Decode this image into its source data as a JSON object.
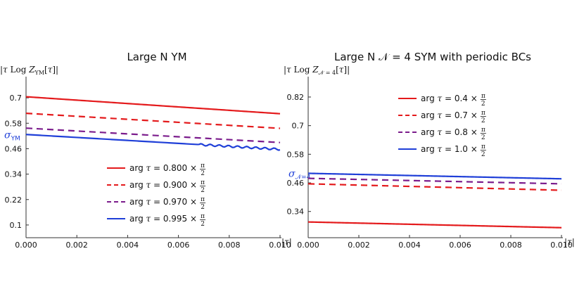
{
  "chart_data": [
    {
      "type": "line",
      "title": "Large N YM",
      "ylabel_parts": [
        "|",
        "τ",
        " Log ",
        "Z",
        "YM",
        "[",
        "τ",
        "]|"
      ],
      "xlabel_parts": [
        "|",
        "τ",
        "|"
      ],
      "xlim": [
        0,
        0.01
      ],
      "ylim": [
        0.04,
        0.76
      ],
      "xticks": [
        0.0,
        0.002,
        0.004,
        0.006,
        0.008,
        0.01
      ],
      "xtick_labels": [
        "0.000",
        "0.002",
        "0.004",
        "0.006",
        "0.008",
        "0.010"
      ],
      "yticks": [
        0.1,
        0.22,
        0.34,
        0.46,
        0.58,
        0.7
      ],
      "ytick_labels": [
        "0.1",
        "0.22",
        "0.34",
        "0.46",
        "0.58",
        "0.7"
      ],
      "sigma": {
        "symbol": "σ",
        "subscript": "YM",
        "value": 0.526,
        "color": "#1f3fd8"
      },
      "legend_position": "center",
      "series": [
        {
          "name": "arg τ = 0.800 × π/2",
          "legend_prefix": "arg ",
          "legend_var": "τ",
          "legend_mid": " = 0.800 × ",
          "frac_num": "π",
          "frac_den": "2",
          "color": "#e41a1c",
          "dash": "solid",
          "x": [
            0,
            0.01
          ],
          "y": [
            0.705,
            0.625
          ]
        },
        {
          "name": "arg τ = 0.900 × π/2",
          "legend_prefix": "arg ",
          "legend_var": "τ",
          "legend_mid": " = 0.900 × ",
          "frac_num": "π",
          "frac_den": "2",
          "color": "#e41a1c",
          "dash": "dashed",
          "x": [
            0,
            0.01
          ],
          "y": [
            0.627,
            0.556
          ]
        },
        {
          "name": "arg τ = 0.970 × π/2",
          "legend_prefix": "arg ",
          "legend_var": "τ",
          "legend_mid": " = 0.970 × ",
          "frac_num": "π",
          "frac_den": "2",
          "color": "#7b1c8c",
          "dash": "dashed",
          "x": [
            0,
            0.01
          ],
          "y": [
            0.557,
            0.489
          ]
        },
        {
          "name": "arg τ = 0.995 × π/2",
          "legend_prefix": "arg ",
          "legend_var": "τ",
          "legend_mid": " = 0.995 × ",
          "frac_num": "π",
          "frac_den": "2",
          "color": "#1f3fd8",
          "dash": "solid",
          "x": [
            0,
            0.01
          ],
          "y": [
            0.527,
            0.457
          ],
          "wiggle_from": 0.0068,
          "wiggle_amp": 0.0045
        }
      ]
    },
    {
      "type": "line",
      "title": "Large N 𝒩 = 4 SYM with periodic BCs",
      "ylabel_parts": [
        "|",
        "τ",
        " Log ",
        "Z",
        "𝒩 = 4",
        "[",
        "τ",
        "]|"
      ],
      "xlabel_parts": [
        "|",
        "τ",
        "|"
      ],
      "xlim": [
        0,
        0.01
      ],
      "ylim": [
        0.23,
        0.87
      ],
      "xticks": [
        0.0,
        0.002,
        0.004,
        0.006,
        0.008,
        0.01
      ],
      "xtick_labels": [
        "0.000",
        "0.002",
        "0.004",
        "0.006",
        "0.008",
        "0.010"
      ],
      "yticks": [
        0.34,
        0.46,
        0.58,
        0.7,
        0.82
      ],
      "ytick_labels": [
        "0.34",
        "0.46",
        "0.58",
        "0.7",
        "0.82"
      ],
      "sigma": {
        "symbol": "σ",
        "subscript": "𝒩=4",
        "value": 0.5,
        "color": "#1f3fd8"
      },
      "legend_position": "top-right",
      "series": [
        {
          "name": "arg τ = 0.4 × π/2",
          "legend_prefix": "arg ",
          "legend_var": "τ",
          "legend_mid": " = 0.4 × ",
          "frac_num": "π",
          "frac_den": "2",
          "color": "#e41a1c",
          "dash": "solid",
          "x": [
            0,
            0.01
          ],
          "y": [
            0.296,
            0.272
          ]
        },
        {
          "name": "arg τ = 0.7 × π/2",
          "legend_prefix": "arg ",
          "legend_var": "τ",
          "legend_mid": " = 0.7 × ",
          "frac_num": "π",
          "frac_den": "2",
          "color": "#e41a1c",
          "dash": "dashed",
          "x": [
            0,
            0.01
          ],
          "y": [
            0.456,
            0.429
          ]
        },
        {
          "name": "arg τ = 0.8 × π/2",
          "legend_prefix": "arg ",
          "legend_var": "τ",
          "legend_mid": " = 0.8 × ",
          "frac_num": "π",
          "frac_den": "2",
          "color": "#7b1c8c",
          "dash": "dashed",
          "x": [
            0,
            0.01
          ],
          "y": [
            0.479,
            0.456
          ]
        },
        {
          "name": "arg τ = 1.0 × π/2",
          "legend_prefix": "arg ",
          "legend_var": "τ",
          "legend_mid": " = 1.0 × ",
          "frac_num": "π",
          "frac_den": "2",
          "color": "#1f3fd8",
          "dash": "solid",
          "x": [
            0,
            0.01
          ],
          "y": [
            0.5,
            0.477
          ]
        }
      ]
    }
  ]
}
